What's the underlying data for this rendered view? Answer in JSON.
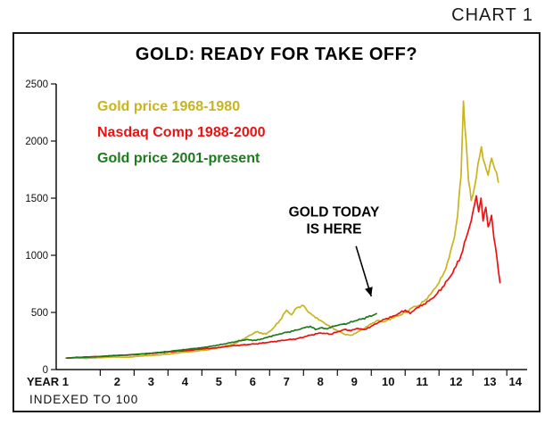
{
  "page": {
    "chart_label": "CHART 1"
  },
  "chart_data": {
    "type": "line",
    "title": "GOLD: READY FOR TAKE OFF?",
    "x_axis": {
      "label_prefix": "YEAR",
      "ticks": [
        1,
        2,
        3,
        4,
        5,
        6,
        7,
        8,
        9,
        10,
        11,
        12,
        13,
        14
      ],
      "range": [
        0.7,
        14.6
      ],
      "note": "INDEXED TO 100"
    },
    "y_axis": {
      "ticks": [
        0,
        500,
        1000,
        1500,
        2000,
        2500
      ],
      "range": [
        0,
        2500
      ]
    },
    "grid": false,
    "legend_position": "top-left",
    "annotation": {
      "line1": "GOLD TODAY",
      "line2": "IS HERE",
      "text_x": 8.9,
      "text_y": 1340,
      "arrow_from": [
        9.55,
        1080
      ],
      "arrow_to": [
        10.0,
        640
      ]
    },
    "series": [
      {
        "name": "Gold price 1968-1980",
        "color": "#c8b41e",
        "points": [
          [
            1,
            100
          ],
          [
            1.3,
            103
          ],
          [
            1.6,
            98
          ],
          [
            2,
            105
          ],
          [
            2.4,
            110
          ],
          [
            2.8,
            108
          ],
          [
            3.2,
            118
          ],
          [
            3.6,
            125
          ],
          [
            4,
            135
          ],
          [
            4.4,
            150
          ],
          [
            4.8,
            160
          ],
          [
            5.2,
            175
          ],
          [
            5.6,
            195
          ],
          [
            6,
            230
          ],
          [
            6.3,
            280
          ],
          [
            6.6,
            330
          ],
          [
            6.9,
            310
          ],
          [
            7.1,
            360
          ],
          [
            7.3,
            430
          ],
          [
            7.5,
            520
          ],
          [
            7.65,
            480
          ],
          [
            7.8,
            540
          ],
          [
            8,
            560
          ],
          [
            8.15,
            500
          ],
          [
            8.3,
            470
          ],
          [
            8.5,
            430
          ],
          [
            8.7,
            390
          ],
          [
            9,
            340
          ],
          [
            9.2,
            310
          ],
          [
            9.4,
            300
          ],
          [
            9.6,
            330
          ],
          [
            9.8,
            360
          ],
          [
            10,
            400
          ],
          [
            10.2,
            430
          ],
          [
            10.4,
            420
          ],
          [
            10.6,
            450
          ],
          [
            10.8,
            470
          ],
          [
            11,
            500
          ],
          [
            11.2,
            540
          ],
          [
            11.4,
            560
          ],
          [
            11.6,
            610
          ],
          [
            11.8,
            680
          ],
          [
            12,
            760
          ],
          [
            12.15,
            850
          ],
          [
            12.3,
            980
          ],
          [
            12.45,
            1150
          ],
          [
            12.55,
            1350
          ],
          [
            12.65,
            1700
          ],
          [
            12.72,
            2350
          ],
          [
            12.8,
            2000
          ],
          [
            12.87,
            1650
          ],
          [
            12.95,
            1480
          ],
          [
            13.05,
            1600
          ],
          [
            13.15,
            1800
          ],
          [
            13.25,
            1950
          ],
          [
            13.35,
            1800
          ],
          [
            13.45,
            1700
          ],
          [
            13.55,
            1850
          ],
          [
            13.65,
            1750
          ],
          [
            13.75,
            1640
          ]
        ]
      },
      {
        "name": "Nasdaq Comp 1988-2000",
        "color": "#ee1111",
        "points": [
          [
            1,
            100
          ],
          [
            1.4,
            108
          ],
          [
            1.8,
            112
          ],
          [
            2.2,
            118
          ],
          [
            2.6,
            125
          ],
          [
            3,
            130
          ],
          [
            3.4,
            138
          ],
          [
            3.8,
            148
          ],
          [
            4.2,
            158
          ],
          [
            4.6,
            168
          ],
          [
            5,
            180
          ],
          [
            5.4,
            190
          ],
          [
            5.8,
            205
          ],
          [
            6.2,
            215
          ],
          [
            6.6,
            225
          ],
          [
            7,
            240
          ],
          [
            7.4,
            255
          ],
          [
            7.8,
            270
          ],
          [
            8.2,
            300
          ],
          [
            8.5,
            320
          ],
          [
            8.8,
            310
          ],
          [
            9,
            330
          ],
          [
            9.2,
            350
          ],
          [
            9.4,
            340
          ],
          [
            9.6,
            360
          ],
          [
            9.8,
            350
          ],
          [
            10,
            380
          ],
          [
            10.2,
            410
          ],
          [
            10.4,
            440
          ],
          [
            10.6,
            460
          ],
          [
            10.8,
            490
          ],
          [
            11,
            520
          ],
          [
            11.15,
            490
          ],
          [
            11.3,
            530
          ],
          [
            11.5,
            560
          ],
          [
            11.7,
            600
          ],
          [
            11.9,
            650
          ],
          [
            12.1,
            720
          ],
          [
            12.3,
            800
          ],
          [
            12.5,
            900
          ],
          [
            12.65,
            1000
          ],
          [
            12.8,
            1150
          ],
          [
            12.9,
            1250
          ],
          [
            13,
            1380
          ],
          [
            13.1,
            1520
          ],
          [
            13.17,
            1380
          ],
          [
            13.24,
            1500
          ],
          [
            13.3,
            1300
          ],
          [
            13.38,
            1420
          ],
          [
            13.45,
            1250
          ],
          [
            13.55,
            1350
          ],
          [
            13.62,
            1150
          ],
          [
            13.7,
            1000
          ],
          [
            13.75,
            870
          ],
          [
            13.8,
            760
          ]
        ]
      },
      {
        "name": "Gold price 2001-present",
        "color": "#1f7a1f",
        "points": [
          [
            1,
            100
          ],
          [
            1.3,
            104
          ],
          [
            1.6,
            108
          ],
          [
            2,
            115
          ],
          [
            2.4,
            122
          ],
          [
            2.8,
            128
          ],
          [
            3.2,
            136
          ],
          [
            3.6,
            146
          ],
          [
            4,
            158
          ],
          [
            4.3,
            168
          ],
          [
            4.6,
            178
          ],
          [
            5,
            192
          ],
          [
            5.3,
            205
          ],
          [
            5.6,
            220
          ],
          [
            6,
            245
          ],
          [
            6.3,
            262
          ],
          [
            6.6,
            255
          ],
          [
            6.9,
            280
          ],
          [
            7.2,
            305
          ],
          [
            7.5,
            325
          ],
          [
            7.8,
            345
          ],
          [
            8,
            365
          ],
          [
            8.2,
            380
          ],
          [
            8.35,
            350
          ],
          [
            8.5,
            365
          ],
          [
            8.7,
            355
          ],
          [
            8.9,
            380
          ],
          [
            9.1,
            395
          ],
          [
            9.3,
            405
          ],
          [
            9.5,
            425
          ],
          [
            9.7,
            440
          ],
          [
            9.9,
            460
          ],
          [
            10.05,
            475
          ],
          [
            10.15,
            490
          ]
        ]
      }
    ]
  }
}
